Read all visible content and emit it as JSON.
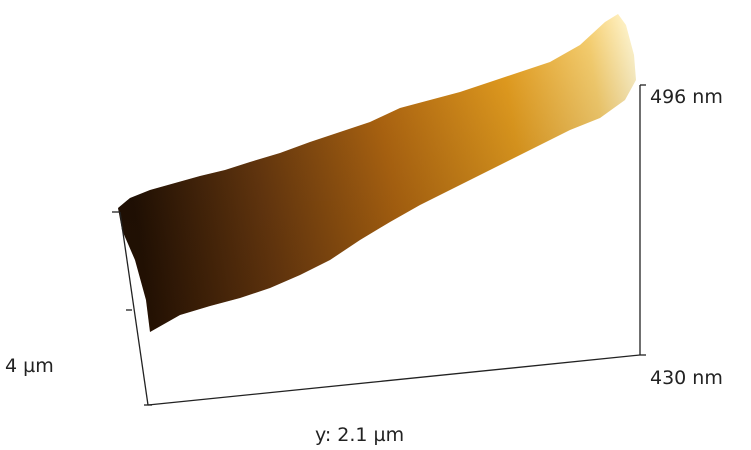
{
  "axes": {
    "z_max_label": "496 nm",
    "z_min_label": "430 nm",
    "y_label": "y: 2.1 µm",
    "x_label": "4 µm"
  }
}
